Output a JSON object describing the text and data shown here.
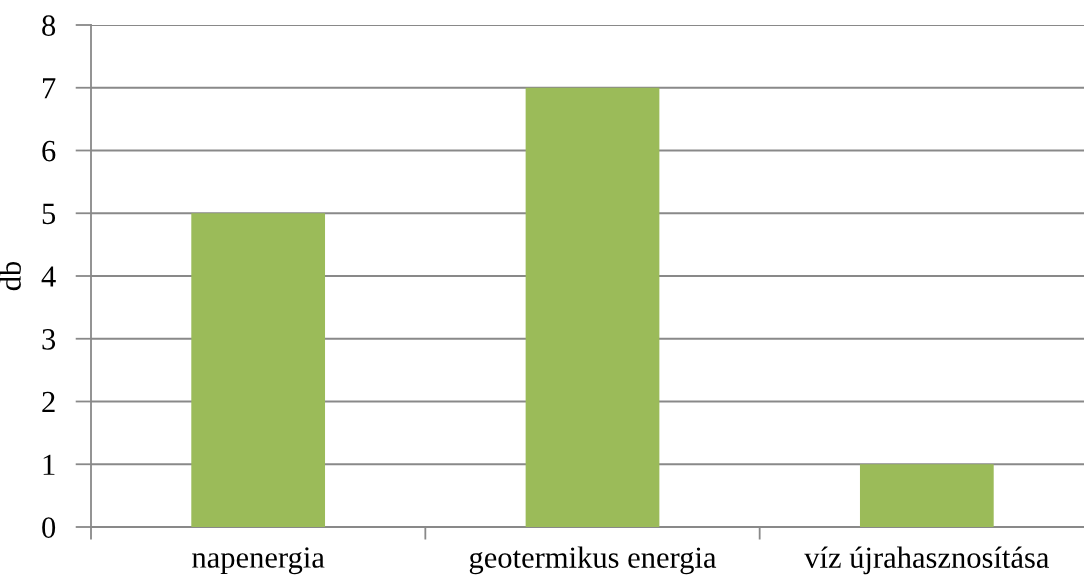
{
  "chart_data": {
    "type": "bar",
    "ylabel": "db",
    "categories": [
      "napenergia",
      "geotermikus energia",
      "víz újrahasznosítása"
    ],
    "values": [
      5,
      7,
      1
    ],
    "color": "#9bbb59",
    "ylim": [
      0,
      8
    ],
    "yticks": [
      0,
      1,
      2,
      3,
      4,
      5,
      6,
      7,
      8
    ],
    "grid": "y"
  }
}
